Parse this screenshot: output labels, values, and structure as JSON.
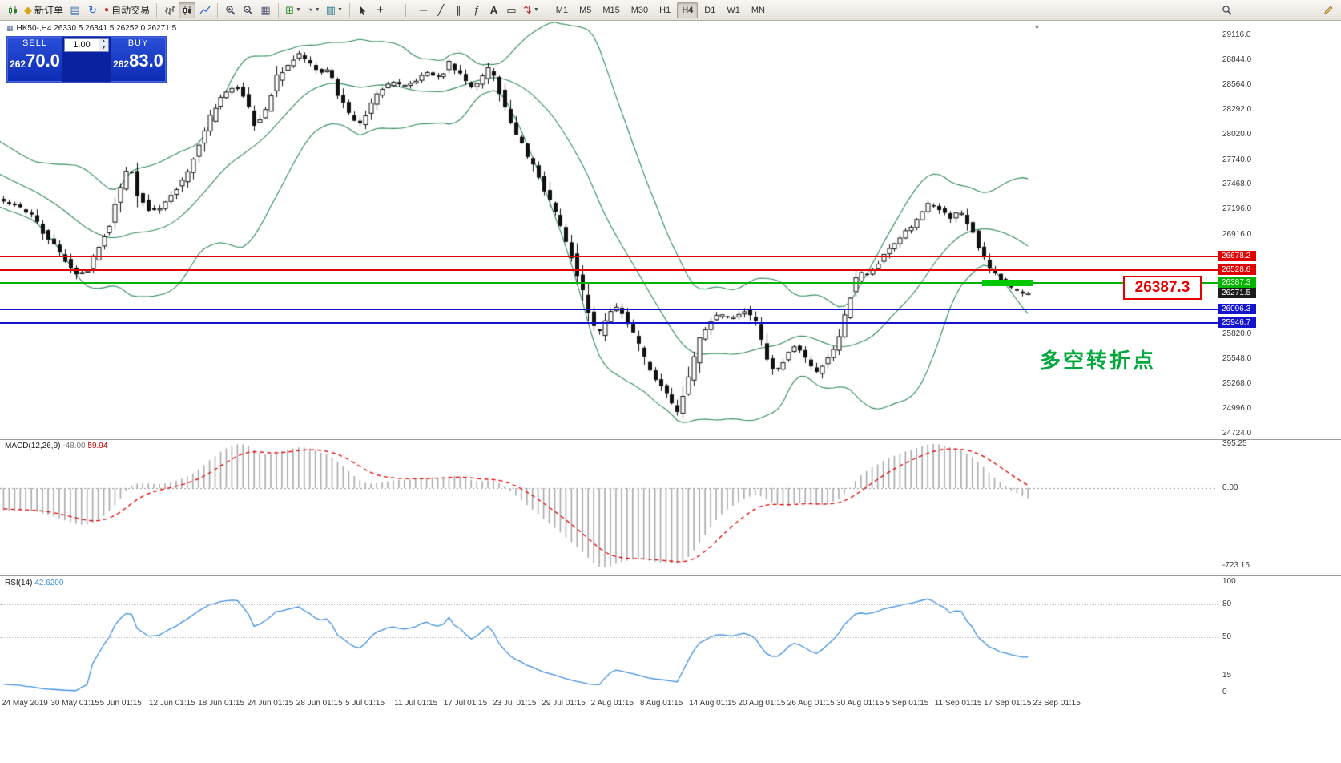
{
  "toolbar": {
    "new_order_label": "新订单",
    "auto_trading_label": "自动交易",
    "timeframes": [
      "M1",
      "M5",
      "M15",
      "M30",
      "H1",
      "H4",
      "D1",
      "W1",
      "MN"
    ],
    "active_timeframe": "H4",
    "icons": [
      "new-chart",
      "new-order",
      "profiles",
      "refresh",
      "auto-trading",
      "bar-chart",
      "candlestick-chart",
      "line-chart",
      "zoom-in",
      "zoom-out",
      "tile-windows",
      "indicators",
      "periods",
      "templates",
      "cursor",
      "crosshair",
      "vertical-line",
      "horizontal-line",
      "trendline",
      "channel",
      "fibonacci",
      "text",
      "text-label",
      "arrows",
      "search",
      "pencil"
    ]
  },
  "trade_panel": {
    "sell_label": "SELL",
    "buy_label": "BUY",
    "volume": "1.00",
    "sell_price": "26270.0",
    "buy_price": "26283.0"
  },
  "chart": {
    "title": "HK50-,H4 26330.5 26341.5 26252.0 26271.5"
  },
  "price_axis": {
    "ticks": [
      {
        "label": "29116.0",
        "value": 29116.0
      },
      {
        "label": "28844.0",
        "value": 28844.0
      },
      {
        "label": "28564.0",
        "value": 28564.0
      },
      {
        "label": "28292.0",
        "value": 28292.0
      },
      {
        "label": "28020.0",
        "value": 28020.0
      },
      {
        "label": "27740.0",
        "value": 27740.0
      },
      {
        "label": "27468.0",
        "value": 27468.0
      },
      {
        "label": "27196.0",
        "value": 27196.0
      },
      {
        "label": "26916.0",
        "value": 26916.0
      },
      {
        "label": "25820.0",
        "value": 25820.0
      },
      {
        "label": "25548.0",
        "value": 25548.0
      },
      {
        "label": "25268.0",
        "value": 25268.0
      },
      {
        "label": "24996.0",
        "value": 24996.0
      },
      {
        "label": "24724.0",
        "value": 24724.0
      }
    ]
  },
  "hlines": [
    {
      "price": 26678.2,
      "label": "26678.2",
      "color": "#e00000",
      "style": "solid"
    },
    {
      "price": 26528.6,
      "label": "26528.6",
      "color": "#e00000",
      "style": "solid"
    },
    {
      "price": 26387.3,
      "label": "26387.3",
      "color": "#00b400",
      "style": "solid"
    },
    {
      "price": 26271.5,
      "label": "26271.5",
      "color": "#1c1c1c",
      "style": "dotted"
    },
    {
      "price": 26096.3,
      "label": "26096.3",
      "color": "#1414cc",
      "style": "solid"
    },
    {
      "price": 25946.7,
      "label": "25946.7",
      "color": "#1414cc",
      "style": "solid"
    }
  ],
  "annotations": {
    "price_callout": "26387.3",
    "turning_point_note": "多空转折点"
  },
  "macd": {
    "label": "MACD(12,26,9)",
    "value_main": "-48.00",
    "value_signal": "59.94",
    "axis_max": "395.25",
    "axis_zero": "0.00",
    "axis_min": "-723.16"
  },
  "rsi": {
    "label": "RSI(14)",
    "value": "42.6200",
    "levels": [
      {
        "label": "100",
        "value": 100
      },
      {
        "label": "80",
        "value": 80
      },
      {
        "label": "50",
        "value": 50
      },
      {
        "label": "15",
        "value": 15
      },
      {
        "label": "0",
        "value": 0
      }
    ]
  },
  "date_axis": [
    "24 May 2019",
    "30 May 01:15",
    "5 Jun 01:15",
    "12 Jun 01:15",
    "18 Jun 01:15",
    "24 Jun 01:15",
    "28 Jun 01:15",
    "5 Jul 01:15",
    "11 Jul 01:15",
    "17 Jul 01:15",
    "23 Jul 01:15",
    "29 Jul 01:15",
    "2 Aug 01:15",
    "8 Aug 01:15",
    "14 Aug 01:15",
    "20 Aug 01:15",
    "26 Aug 01:15",
    "30 Aug 01:15",
    "5 Sep 01:15",
    "11 Sep 01:15",
    "17 Sep 01:15",
    "23 Sep 01:15"
  ],
  "chart_data": {
    "type": "candlestick",
    "symbol": "HK50",
    "timeframe": "H4",
    "last_ohlc": {
      "open": 26330.5,
      "high": 26341.5,
      "low": 26252.0,
      "close": 26271.5
    },
    "y_range": [
      24724.0,
      29116.0
    ],
    "levels": [
      26678.2,
      26528.6,
      26387.3,
      26096.3,
      25946.7
    ],
    "last_close": 26271.5,
    "indicators": [
      {
        "type": "bollinger_bands",
        "period": 20,
        "deviation": 2,
        "color": "#2e8b57"
      },
      {
        "type": "macd",
        "fast": 12,
        "slow": 26,
        "signal": 9,
        "last_main": -48.0,
        "last_signal": 59.94,
        "range": [
          -723.16,
          395.25
        ]
      },
      {
        "type": "rsi",
        "period": 14,
        "last": 42.62
      }
    ],
    "price_path": [
      [
        -350,
        27900
      ],
      [
        -300,
        28200
      ],
      [
        -255,
        28420
      ],
      [
        -210,
        28300
      ],
      [
        -160,
        28050
      ],
      [
        -110,
        27820
      ],
      [
        -70,
        27620
      ],
      [
        -35,
        27470
      ],
      [
        0,
        27330
      ],
      [
        20,
        27260
      ],
      [
        45,
        27150
      ],
      [
        60,
        26950
      ],
      [
        80,
        26730
      ],
      [
        100,
        26480
      ],
      [
        115,
        26520
      ],
      [
        130,
        26800
      ],
      [
        145,
        27060
      ],
      [
        158,
        27480
      ],
      [
        168,
        27700
      ],
      [
        178,
        27390
      ],
      [
        195,
        27160
      ],
      [
        210,
        27230
      ],
      [
        225,
        27400
      ],
      [
        240,
        27620
      ],
      [
        255,
        27900
      ],
      [
        270,
        28230
      ],
      [
        285,
        28470
      ],
      [
        300,
        28560
      ],
      [
        312,
        28440
      ],
      [
        325,
        28120
      ],
      [
        338,
        28300
      ],
      [
        352,
        28640
      ],
      [
        365,
        28790
      ],
      [
        378,
        28910
      ],
      [
        392,
        28810
      ],
      [
        405,
        28700
      ],
      [
        418,
        28760
      ],
      [
        430,
        28440
      ],
      [
        443,
        28240
      ],
      [
        455,
        28110
      ],
      [
        468,
        28340
      ],
      [
        480,
        28500
      ],
      [
        495,
        28600
      ],
      [
        510,
        28560
      ],
      [
        525,
        28620
      ],
      [
        540,
        28700
      ],
      [
        555,
        28640
      ],
      [
        568,
        28810
      ],
      [
        580,
        28690
      ],
      [
        592,
        28540
      ],
      [
        605,
        28600
      ],
      [
        618,
        28770
      ],
      [
        630,
        28490
      ],
      [
        642,
        28190
      ],
      [
        655,
        27940
      ],
      [
        668,
        27740
      ],
      [
        680,
        27540
      ],
      [
        692,
        27290
      ],
      [
        705,
        27040
      ],
      [
        715,
        26840
      ],
      [
        728,
        26480
      ],
      [
        740,
        26080
      ],
      [
        752,
        25780
      ],
      [
        765,
        26040
      ],
      [
        778,
        26140
      ],
      [
        790,
        25940
      ],
      [
        802,
        25740
      ],
      [
        815,
        25440
      ],
      [
        828,
        25290
      ],
      [
        840,
        25140
      ],
      [
        852,
        24940
      ],
      [
        865,
        25290
      ],
      [
        878,
        25690
      ],
      [
        890,
        25940
      ],
      [
        905,
        26040
      ],
      [
        920,
        25990
      ],
      [
        935,
        26090
      ],
      [
        950,
        25940
      ],
      [
        963,
        25540
      ],
      [
        975,
        25390
      ],
      [
        988,
        25590
      ],
      [
        1000,
        25690
      ],
      [
        1012,
        25540
      ],
      [
        1025,
        25390
      ],
      [
        1038,
        25540
      ],
      [
        1052,
        25690
      ],
      [
        1065,
        26190
      ],
      [
        1078,
        26490
      ],
      [
        1092,
        26470
      ],
      [
        1105,
        26640
      ],
      [
        1118,
        26790
      ],
      [
        1130,
        26890
      ],
      [
        1142,
        26990
      ],
      [
        1155,
        27140
      ],
      [
        1168,
        27270
      ],
      [
        1180,
        27190
      ],
      [
        1192,
        27090
      ],
      [
        1205,
        27190
      ],
      [
        1218,
        26990
      ],
      [
        1230,
        26740
      ],
      [
        1242,
        26540
      ],
      [
        1252,
        26440
      ],
      [
        1262,
        26370
      ],
      [
        1272,
        26300
      ],
      [
        1285,
        26272
      ]
    ]
  }
}
